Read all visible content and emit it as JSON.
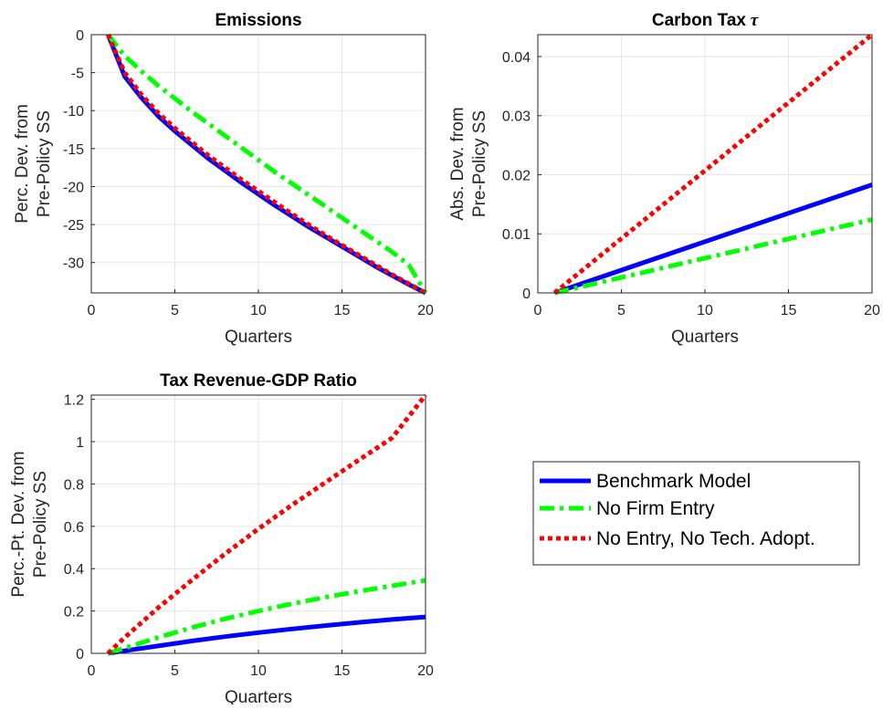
{
  "chart_data": [
    {
      "type": "line",
      "title": "Emissions",
      "xlabel": "Quarters",
      "ylabel_lines": [
        "Perc. Dev. from",
        "Pre-Policy SS"
      ],
      "xlim": [
        0,
        20
      ],
      "ylim": [
        -34,
        0
      ],
      "xticks": [
        0,
        5,
        10,
        15,
        20
      ],
      "yticks": [
        0,
        -5,
        -10,
        -15,
        -20,
        -25,
        -30
      ],
      "grid": true,
      "series": [
        {
          "name": "Benchmark Model",
          "x": [
            1,
            2,
            3,
            4,
            5,
            6,
            7,
            8,
            9,
            10,
            11,
            12,
            13,
            14,
            15,
            16,
            17,
            18,
            19,
            20
          ],
          "y": [
            0,
            -5.5,
            -8.3,
            -10.7,
            -12.7,
            -14.5,
            -16.3,
            -17.9,
            -19.5,
            -21.0,
            -22.5,
            -23.9,
            -25.3,
            -26.6,
            -27.9,
            -29.2,
            -30.5,
            -31.7,
            -32.9,
            -34.0
          ]
        },
        {
          "name": "No Firm Entry",
          "x": [
            1,
            2,
            3,
            4,
            5,
            6,
            7,
            8,
            9,
            10,
            11,
            12,
            13,
            14,
            15,
            16,
            17,
            18,
            19,
            20
          ],
          "y": [
            0,
            -2.8,
            -4.8,
            -6.7,
            -8.4,
            -10.1,
            -11.7,
            -13.3,
            -14.9,
            -16.5,
            -18.1,
            -19.6,
            -21.1,
            -22.6,
            -24.1,
            -25.6,
            -27.1,
            -28.6,
            -30.3,
            -34.0
          ]
        },
        {
          "name": "No Entry, No Tech. Adopt.",
          "x": [
            1,
            2,
            3,
            4,
            5,
            6,
            7,
            8,
            9,
            10,
            11,
            12,
            13,
            14,
            15,
            16,
            17,
            18,
            19,
            20
          ],
          "y": [
            0,
            -5.0,
            -7.9,
            -10.3,
            -12.3,
            -14.1,
            -15.9,
            -17.5,
            -19.1,
            -20.6,
            -22.1,
            -23.6,
            -25.0,
            -26.4,
            -27.7,
            -29.0,
            -30.3,
            -31.6,
            -32.8,
            -34.0
          ]
        }
      ]
    },
    {
      "type": "line",
      "title": "Carbon Tax",
      "title_symbol": "τ",
      "xlabel": "Quarters",
      "ylabel_lines": [
        "Abs. Dev. from",
        "Pre-Policy SS"
      ],
      "xlim": [
        0,
        20
      ],
      "ylim": [
        0,
        0.0437
      ],
      "xticks": [
        0,
        5,
        10,
        15,
        20
      ],
      "yticks": [
        0,
        0.01,
        0.02,
        0.03,
        0.04
      ],
      "grid": true,
      "series": [
        {
          "name": "Benchmark Model",
          "x": [
            1,
            20
          ],
          "y": [
            0,
            0.0183
          ]
        },
        {
          "name": "No Firm Entry",
          "x": [
            1,
            20
          ],
          "y": [
            0,
            0.0124
          ]
        },
        {
          "name": "No Entry, No Tech. Adopt.",
          "x": [
            1,
            20
          ],
          "y": [
            0,
            0.0437
          ]
        }
      ]
    },
    {
      "type": "line",
      "title": "Tax Revenue-GDP Ratio",
      "xlabel": "Quarters",
      "ylabel_lines": [
        "Perc.-Pt. Dev. from",
        "Pre-Policy SS"
      ],
      "xlim": [
        0,
        20
      ],
      "ylim": [
        0,
        1.22
      ],
      "xticks": [
        0,
        5,
        10,
        15,
        20
      ],
      "yticks": [
        0,
        0.2,
        0.4,
        0.6,
        0.8,
        1,
        1.2
      ],
      "grid": true,
      "series": [
        {
          "name": "Benchmark Model",
          "x": [
            1,
            2,
            4,
            6,
            8,
            10,
            12,
            14,
            16,
            18,
            20
          ],
          "y": [
            0,
            0.012,
            0.035,
            0.058,
            0.079,
            0.098,
            0.115,
            0.131,
            0.146,
            0.16,
            0.172
          ]
        },
        {
          "name": "No Firm Entry",
          "x": [
            1,
            2,
            4,
            6,
            8,
            10,
            12,
            14,
            16,
            18,
            20
          ],
          "y": [
            0,
            0.025,
            0.075,
            0.121,
            0.163,
            0.2,
            0.234,
            0.265,
            0.293,
            0.319,
            0.345
          ]
        },
        {
          "name": "No Entry, No Tech. Adopt.",
          "x": [
            1,
            2,
            4,
            6,
            8,
            10,
            12,
            14,
            16,
            18,
            20
          ],
          "y": [
            0,
            0.075,
            0.215,
            0.345,
            0.47,
            0.588,
            0.7,
            0.807,
            0.913,
            1.018,
            1.22
          ]
        }
      ]
    }
  ],
  "legend": {
    "placement": "lower-right (empty fourth panel)",
    "entries": [
      "Benchmark Model",
      "No Firm Entry",
      "No Entry, No Tech. Adopt."
    ]
  },
  "styles": {
    "Benchmark Model": {
      "color": "#0000ff",
      "dash": "solid"
    },
    "No Firm Entry": {
      "color": "#00ff00",
      "dash": "dashdot"
    },
    "No Entry, No Tech. Adopt.": {
      "color": "#ff0000",
      "dash": "dotted"
    }
  }
}
